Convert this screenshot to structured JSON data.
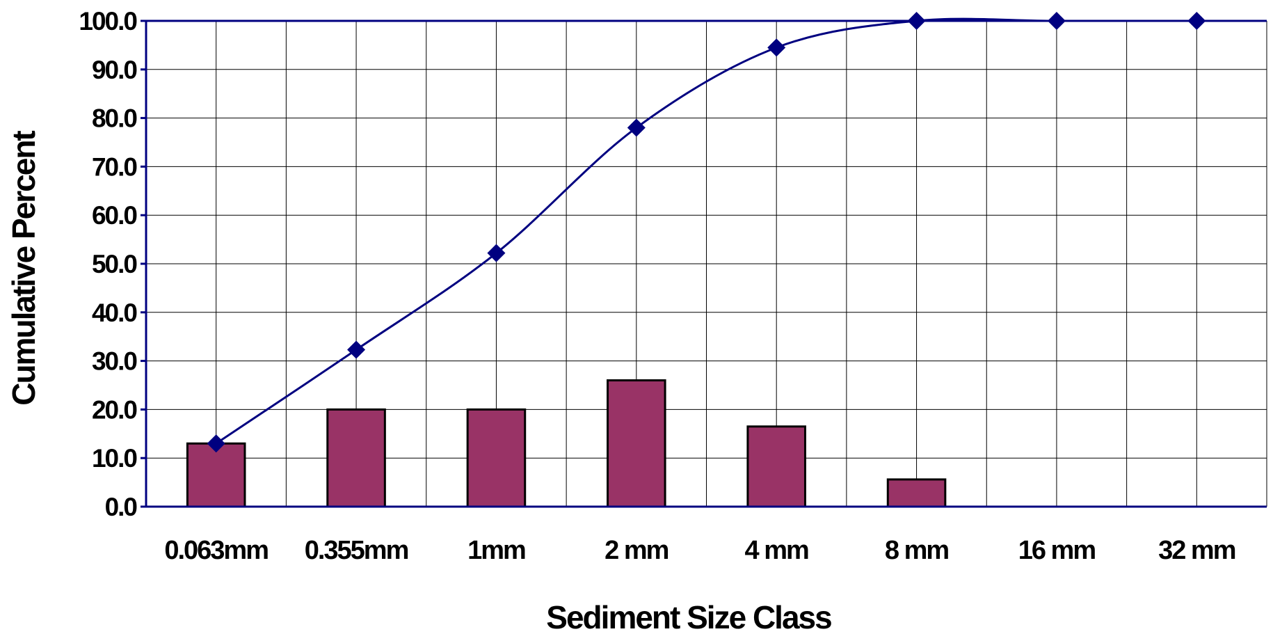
{
  "chart_data": {
    "type": "bar",
    "categories": [
      "0.063mm",
      "0.355mm",
      "1mm",
      "2 mm",
      "4 mm",
      "8 mm",
      "16 mm",
      "32 mm"
    ],
    "series": [
      {
        "type": "bar",
        "values": [
          13.0,
          20.0,
          20.0,
          26.0,
          16.5,
          5.6,
          0,
          0
        ],
        "color": "#993366"
      },
      {
        "type": "line",
        "values": [
          13.0,
          32.3,
          52.2,
          78.0,
          94.5,
          100.0,
          100.0,
          100.0
        ],
        "color": "#000080"
      }
    ],
    "title": "",
    "xlabel": "Sediment Size Class",
    "ylabel": "Cumulative Percent",
    "ylim": [
      0,
      100
    ],
    "yticks": [
      "0.0",
      "10.0",
      "20.0",
      "30.0",
      "40.0",
      "50.0",
      "60.0",
      "70.0",
      "80.0",
      "90.0",
      "100.0"
    ],
    "grid": true,
    "legend": "none"
  }
}
